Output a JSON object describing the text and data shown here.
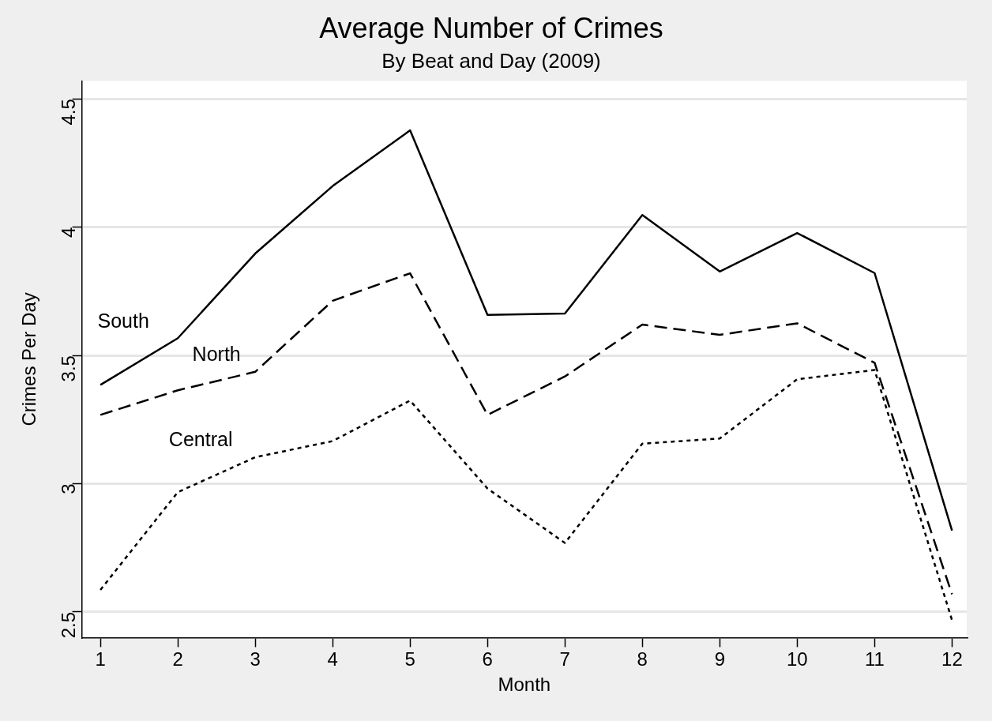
{
  "chart_data": {
    "type": "line",
    "title": "Average Number of Crimes",
    "subtitle": "By Beat and Day (2009)",
    "xlabel": "Month",
    "ylabel": "Crimes Per Day",
    "x": [
      1,
      2,
      3,
      4,
      5,
      6,
      7,
      8,
      9,
      10,
      11,
      12
    ],
    "series": [
      {
        "name": "South",
        "color": "#000000",
        "line_style": "solid",
        "values": [
          3.385,
          3.567,
          3.897,
          4.16,
          4.377,
          3.658,
          3.663,
          4.047,
          3.827,
          3.977,
          3.821,
          2.817
        ]
      },
      {
        "name": "North",
        "color": "#000000",
        "line_style": "dashed",
        "values": [
          3.268,
          3.364,
          3.436,
          3.713,
          3.82,
          3.268,
          3.418,
          3.62,
          3.58,
          3.625,
          3.471,
          2.569
        ]
      },
      {
        "name": "Central",
        "color": "#000000",
        "line_style": "dotted",
        "values": [
          2.586,
          2.967,
          3.103,
          3.166,
          3.324,
          2.981,
          2.769,
          3.156,
          3.176,
          3.407,
          3.443,
          2.468
        ]
      }
    ],
    "xlim": [
      0.76,
      12.19
    ],
    "xticks": [
      1,
      2,
      3,
      4,
      5,
      6,
      7,
      8,
      9,
      10,
      11,
      12
    ],
    "ylim": [
      2.4,
      4.57
    ],
    "yticks": [
      2.5,
      3,
      3.5,
      4,
      4.5
    ],
    "grid": "y",
    "legend": false,
    "marker": "none"
  }
}
